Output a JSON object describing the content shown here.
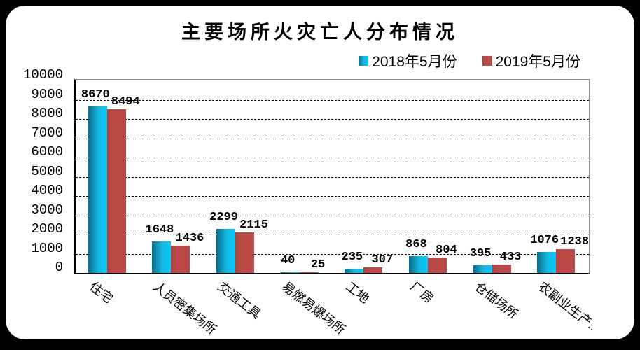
{
  "chart_data": {
    "type": "bar",
    "title": "主要场所火灾亡人分布情况",
    "categories": [
      "住宅",
      "人员密集场所",
      "交通工具",
      "易燃易爆场所",
      "工地",
      "厂房",
      "仓储场所",
      "农副业生产.."
    ],
    "series": [
      {
        "name": "2018年5月份",
        "values": [
          8670,
          1648,
          2299,
          40,
          235,
          868,
          395,
          1076
        ]
      },
      {
        "name": "2019年5月份",
        "values": [
          8494,
          1436,
          2115,
          25,
          307,
          804,
          433,
          1238
        ]
      }
    ],
    "ylim": [
      0,
      10000
    ],
    "ytick_interval": 1000,
    "grid": "horizontal-dashed",
    "legend_position": "top-right",
    "xlabel": "",
    "ylabel": ""
  },
  "colors": {
    "series_2018_gradient_start": "#0a6b85",
    "series_2018_gradient_mid": "#17b8e4",
    "series_2018_gradient_end": "#00ccfa",
    "series_2019": "#bb4a47",
    "series_2019_edge": "#a84341",
    "gridline": "#111111",
    "axis": "#000000",
    "plot_border_shadow": "#909090",
    "card_background": "#ffffff",
    "frame_background": "#000000"
  }
}
